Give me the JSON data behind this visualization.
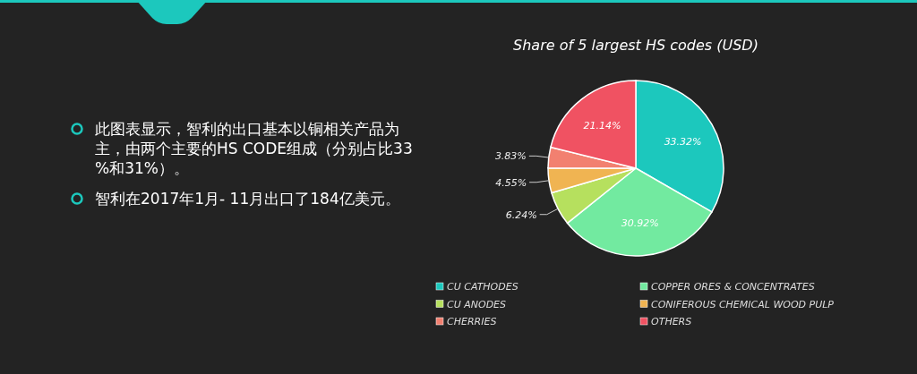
{
  "chart_data": {
    "type": "pie",
    "title": "Share of 5 largest HS codes (USD)",
    "categories": [
      "CU CATHODES",
      "COPPER ORES & CONCENTRATES",
      "CU ANODES",
      "CONIFEROUS CHEMICAL WOOD PULP",
      "CHERRIES",
      "OTHERS"
    ],
    "values": [
      33.32,
      30.92,
      6.24,
      4.55,
      3.83,
      21.14
    ],
    "value_labels": [
      "33.32%",
      "30.92%",
      "6.24%",
      "4.55%",
      "3.83%",
      "21.14%"
    ],
    "colors": [
      "#1cc8bd",
      "#72eaa0",
      "#b6e05e",
      "#f0b452",
      "#f28070",
      "#f05262"
    ],
    "legend": "bottom",
    "annotations": [
      "此图表显示，智利的出口基本以铜相关产品为主，由两个主要的HS CODE组成（分别占比33%和31%）。",
      "智利在2017年1月- 11月出口了184亿美元。"
    ]
  }
}
